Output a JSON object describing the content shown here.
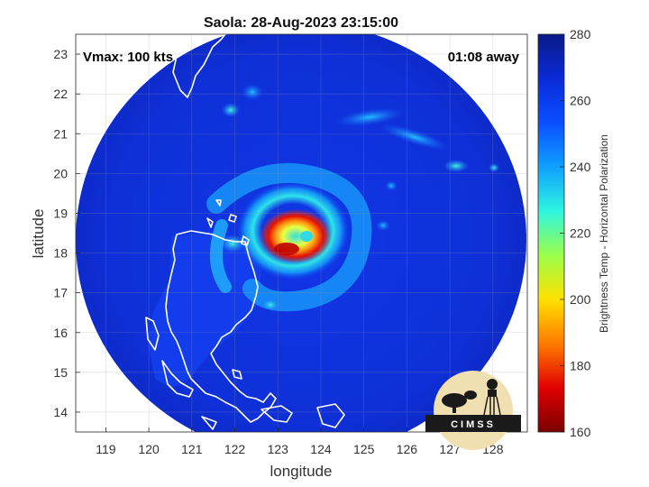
{
  "title": "Saola: 28-Aug-2023 23:15:00",
  "vmax_label": "Vmax: 100 kts",
  "time_away_label": "01:08 away",
  "x_axis": {
    "label": "longitude",
    "ticks": [
      "119",
      "120",
      "121",
      "122",
      "123",
      "124",
      "125",
      "126",
      "127",
      "128"
    ],
    "range": [
      118.3,
      128.8
    ]
  },
  "y_axis": {
    "label": "latitude",
    "ticks": [
      "14",
      "15",
      "16",
      "17",
      "18",
      "19",
      "20",
      "21",
      "22",
      "23"
    ],
    "range": [
      13.5,
      23.5
    ]
  },
  "colorbar": {
    "label": "Brightness Temp - Horizontal Polarization",
    "ticks": [
      "280",
      "260",
      "240",
      "220",
      "200",
      "180",
      "160"
    ],
    "range": [
      160,
      280
    ],
    "colors": [
      "#7a0000",
      "#e00000",
      "#ff7a00",
      "#ffe000",
      "#9bff4a",
      "#2ef5e0",
      "#0fa0ff",
      "#0a4fff",
      "#0a2ad8",
      "#0a1a86"
    ]
  },
  "storm": {
    "name": "Saola",
    "center_lon": 123.3,
    "center_lat": 18.3,
    "vmax_kts": 100
  },
  "logo": {
    "text": "CIMSS"
  },
  "colors": {
    "background_blue": "#0f2fd4",
    "coast": "#ffffff"
  }
}
